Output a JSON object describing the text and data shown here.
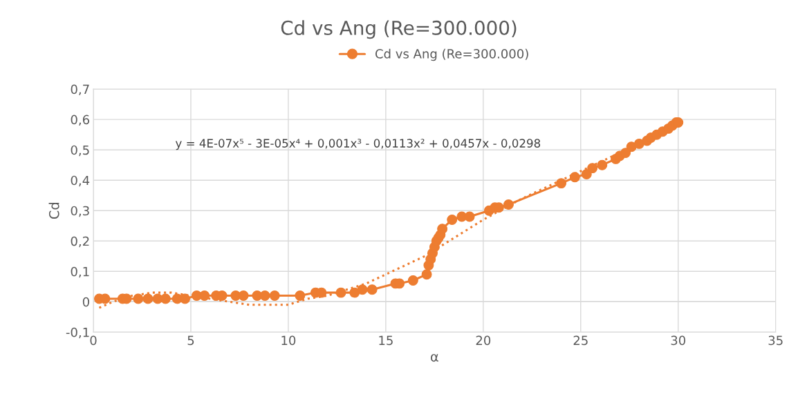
{
  "chart_data": {
    "type": "line",
    "title": "Cd vs Ang (Re=300.000)",
    "xlabel": "α",
    "ylabel": "Cd",
    "annotations": [
      "y = 4E-07x⁵ - 3E-05x⁴ + 0,001x³ - 0,0113x² + 0,0457x - 0,0298"
    ],
    "series": [
      {
        "name": "Cd vs Ang (Re=300.000)",
        "color": "#ed7d31",
        "marker": "circle",
        "line_style": "solid",
        "x": [
          0.3,
          0.6,
          1.5,
          1.7,
          2.3,
          2.8,
          3.3,
          3.7,
          4.3,
          4.7,
          5.3,
          5.7,
          6.3,
          6.6,
          7.3,
          7.7,
          8.4,
          8.8,
          9.3,
          10.6,
          11.4,
          11.7,
          12.7,
          13.4,
          13.8,
          14.3,
          15.5,
          15.7,
          16.4,
          17.1,
          17.2,
          17.3,
          17.4,
          17.5,
          17.6,
          17.7,
          17.8,
          17.9,
          18.4,
          18.9,
          19.3,
          20.3,
          20.6,
          20.8,
          21.3,
          24.0,
          24.7,
          25.3,
          25.6,
          26.1,
          26.8,
          27.0,
          27.3,
          27.6,
          28.0,
          28.4,
          28.6,
          28.9,
          29.2,
          29.5,
          29.7,
          29.9,
          30.0
        ],
        "values": [
          0.01,
          0.01,
          0.01,
          0.01,
          0.01,
          0.01,
          0.01,
          0.01,
          0.01,
          0.01,
          0.02,
          0.02,
          0.02,
          0.02,
          0.02,
          0.02,
          0.02,
          0.02,
          0.02,
          0.02,
          0.03,
          0.03,
          0.03,
          0.03,
          0.04,
          0.04,
          0.06,
          0.06,
          0.07,
          0.09,
          0.12,
          0.14,
          0.16,
          0.18,
          0.2,
          0.21,
          0.22,
          0.24,
          0.27,
          0.28,
          0.28,
          0.3,
          0.31,
          0.31,
          0.32,
          0.39,
          0.41,
          0.42,
          0.44,
          0.45,
          0.47,
          0.48,
          0.49,
          0.51,
          0.52,
          0.53,
          0.54,
          0.55,
          0.56,
          0.57,
          0.58,
          0.59,
          0.59
        ]
      },
      {
        "color": "#ed7d31",
        "marker": "none",
        "line_style": "dotted",
        "x": [
          0.3,
          1,
          2,
          3,
          4,
          5,
          6,
          7,
          8,
          9,
          10,
          11,
          12,
          13,
          14,
          15,
          16,
          17,
          18,
          19,
          20,
          22,
          24,
          26,
          28,
          30
        ],
        "values": [
          -0.02,
          0.0,
          0.02,
          0.03,
          0.03,
          0.02,
          0.01,
          0.0,
          -0.01,
          -0.01,
          -0.01,
          0.01,
          0.02,
          0.04,
          0.06,
          0.09,
          0.12,
          0.15,
          0.19,
          0.23,
          0.27,
          0.34,
          0.4,
          0.46,
          0.52,
          0.59
        ]
      }
    ],
    "xlim": [
      0,
      35
    ],
    "xticks": [
      0,
      5,
      10,
      15,
      20,
      25,
      30,
      35
    ],
    "ylim": [
      -0.1,
      0.7
    ],
    "yticks": [
      {
        "value": -0.1,
        "label": "-0,1"
      },
      0,
      {
        "value": 0.1,
        "label": "0,1"
      },
      {
        "value": 0.2,
        "label": "0,2"
      },
      {
        "value": 0.3,
        "label": "0,3"
      },
      {
        "value": 0.4,
        "label": "0,4"
      },
      {
        "value": 0.5,
        "label": "0,5"
      },
      {
        "value": 0.6,
        "label": "0,6"
      },
      {
        "value": 0.7,
        "label": "0,7"
      }
    ],
    "grid": true,
    "legend": "top"
  }
}
